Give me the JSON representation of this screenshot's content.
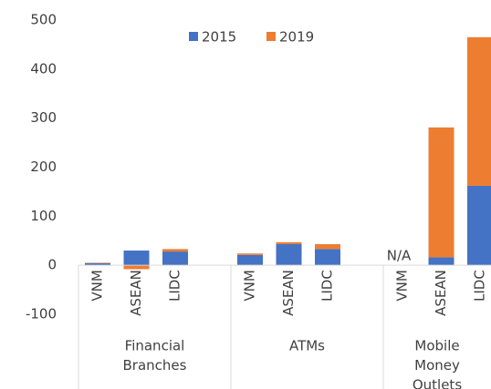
{
  "chart_data": {
    "type": "stacked_bar",
    "groups": [
      {
        "name": [
          "Financial",
          "Branches"
        ],
        "categories": [
          "VNM",
          "ASEAN",
          "LIDC"
        ]
      },
      {
        "name": [
          "ATMs"
        ],
        "categories": [
          "VNM",
          "ASEAN",
          "LIDC"
        ]
      },
      {
        "name": [
          "Mobile",
          "Money",
          "Outlets"
        ],
        "categories": [
          "VNM",
          "ASEAN",
          "LIDC"
        ]
      }
    ],
    "series": [
      {
        "name": "2015",
        "color": "#4472c4",
        "values": [
          4,
          30,
          28,
          21,
          43,
          33,
          null,
          16,
          162
        ],
        "value_labels": [
          null,
          null,
          null,
          null,
          null,
          null,
          "N/A",
          null,
          null
        ]
      },
      {
        "name": "2019",
        "color": "#ed7d31",
        "values": [
          1,
          -8,
          5,
          3,
          4,
          10,
          null,
          265,
          303
        ]
      }
    ],
    "ylim": [
      -100,
      500
    ],
    "yticks": [
      -100,
      0,
      100,
      200,
      300,
      400,
      500
    ],
    "legend": "top",
    "grid": false
  }
}
